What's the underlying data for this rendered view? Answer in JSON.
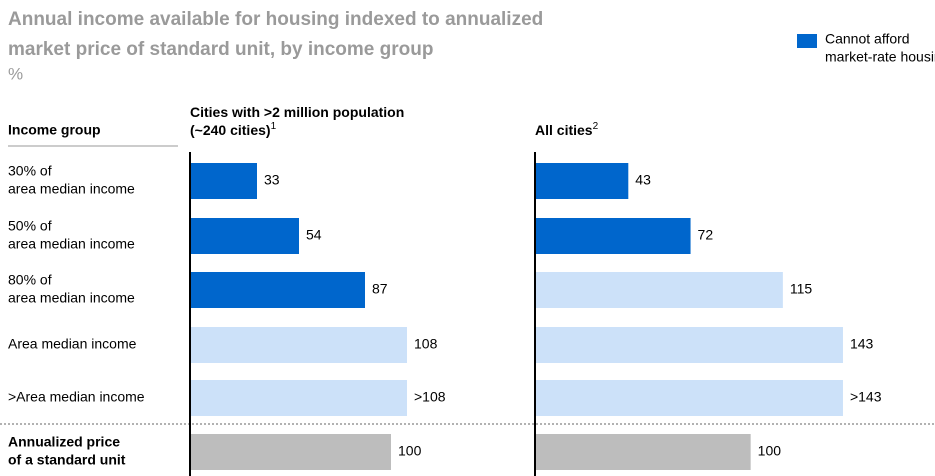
{
  "subtitle": [
    "Annual income available for housing indexed to annualized",
    "market price of standard unit, by income group"
  ],
  "unit": "%",
  "legend": {
    "label": [
      "Cannot afford",
      "market-rate housing"
    ],
    "color": "#0066cc"
  },
  "row_header": "Income group",
  "categories": [
    [
      "30% of",
      "area median income"
    ],
    [
      "50% of",
      "area median income"
    ],
    [
      "80% of",
      "area median income"
    ],
    [
      "Area median income"
    ],
    [
      ">Area median income"
    ],
    [
      "Annualized price",
      "of a standard unit"
    ]
  ],
  "chart_data": [
    {
      "type": "bar",
      "orientation": "horizontal",
      "title": [
        "Cities with >2 million population",
        "(~240 cities)"
      ],
      "footnote": "1",
      "values": [
        33,
        54,
        87,
        108,
        108,
        100
      ],
      "value_labels": [
        "33",
        "54",
        "87",
        "108",
        ">108",
        "100"
      ],
      "colors": [
        "#0066cc",
        "#0066cc",
        "#0066cc",
        "#cce1f9",
        "#cce1f9",
        "#bdbdbd"
      ],
      "xlim": [
        0,
        150
      ]
    },
    {
      "type": "bar",
      "orientation": "horizontal",
      "title": [
        "All cities"
      ],
      "footnote": "2",
      "values": [
        43,
        72,
        115,
        143,
        143,
        100
      ],
      "value_labels": [
        "43",
        "72",
        "115",
        "143",
        ">143",
        "100"
      ],
      "colors": [
        "#0066cc",
        "#0066cc",
        "#cce1f9",
        "#cce1f9",
        "#cce1f9",
        "#bdbdbd"
      ],
      "xlim": [
        0,
        150
      ]
    }
  ]
}
